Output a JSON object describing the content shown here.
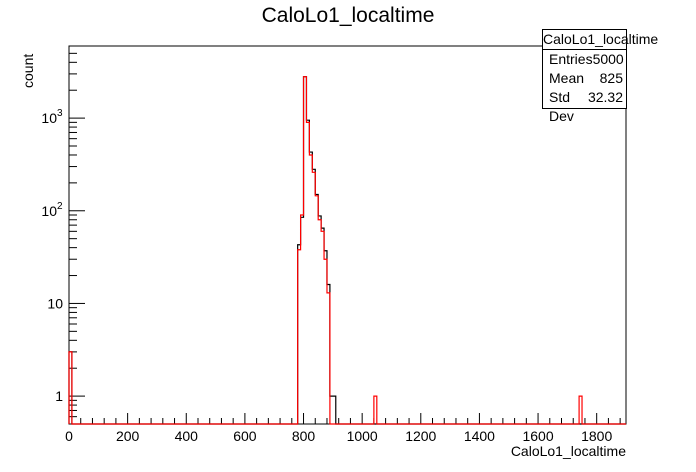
{
  "chart_data": {
    "type": "histogram",
    "title": "CaloLo1_localtime",
    "xlabel": "CaloLo1_localtime",
    "ylabel": "count",
    "xlim": [
      0,
      1900
    ],
    "ylim_log": [
      0.5,
      6000
    ],
    "yscale": "log",
    "bin_width": 10,
    "x_ticks": [
      "0",
      "200",
      "400",
      "600",
      "800",
      "1000",
      "1200",
      "1400",
      "1600",
      "1800"
    ],
    "y_ticks": [
      {
        "value": 1,
        "label": "1"
      },
      {
        "value": 10,
        "label": "10"
      },
      {
        "value": 100,
        "label": "10",
        "exp": "2"
      },
      {
        "value": 1000,
        "label": "10",
        "exp": "3"
      }
    ],
    "series": [
      {
        "color": "#000000",
        "bins": [
          {
            "x": 0,
            "y": 3
          },
          {
            "x": 780,
            "y": 43
          },
          {
            "x": 790,
            "y": 85
          },
          {
            "x": 800,
            "y": 2800
          },
          {
            "x": 810,
            "y": 950
          },
          {
            "x": 820,
            "y": 430
          },
          {
            "x": 830,
            "y": 280
          },
          {
            "x": 840,
            "y": 150
          },
          {
            "x": 850,
            "y": 88
          },
          {
            "x": 860,
            "y": 65
          },
          {
            "x": 870,
            "y": 37
          },
          {
            "x": 880,
            "y": 16
          },
          {
            "x": 890,
            "y": 1
          },
          {
            "x": 900,
            "y": 1
          }
        ]
      },
      {
        "color": "#ff0000",
        "bins": [
          {
            "x": 0,
            "y": 3
          },
          {
            "x": 780,
            "y": 38
          },
          {
            "x": 790,
            "y": 90
          },
          {
            "x": 800,
            "y": 2800
          },
          {
            "x": 810,
            "y": 900
          },
          {
            "x": 820,
            "y": 400
          },
          {
            "x": 830,
            "y": 260
          },
          {
            "x": 840,
            "y": 145
          },
          {
            "x": 850,
            "y": 80
          },
          {
            "x": 860,
            "y": 60
          },
          {
            "x": 870,
            "y": 30
          },
          {
            "x": 880,
            "y": 13
          },
          {
            "x": 1040,
            "y": 1
          },
          {
            "x": 1740,
            "y": 1
          }
        ]
      }
    ]
  },
  "stats": {
    "title": "CaloLo1_localtime",
    "rows": [
      {
        "label": "Entries",
        "value": "5000"
      },
      {
        "label": "Mean",
        "value": "825"
      },
      {
        "label": "Std Dev",
        "value": "32.32"
      }
    ]
  }
}
